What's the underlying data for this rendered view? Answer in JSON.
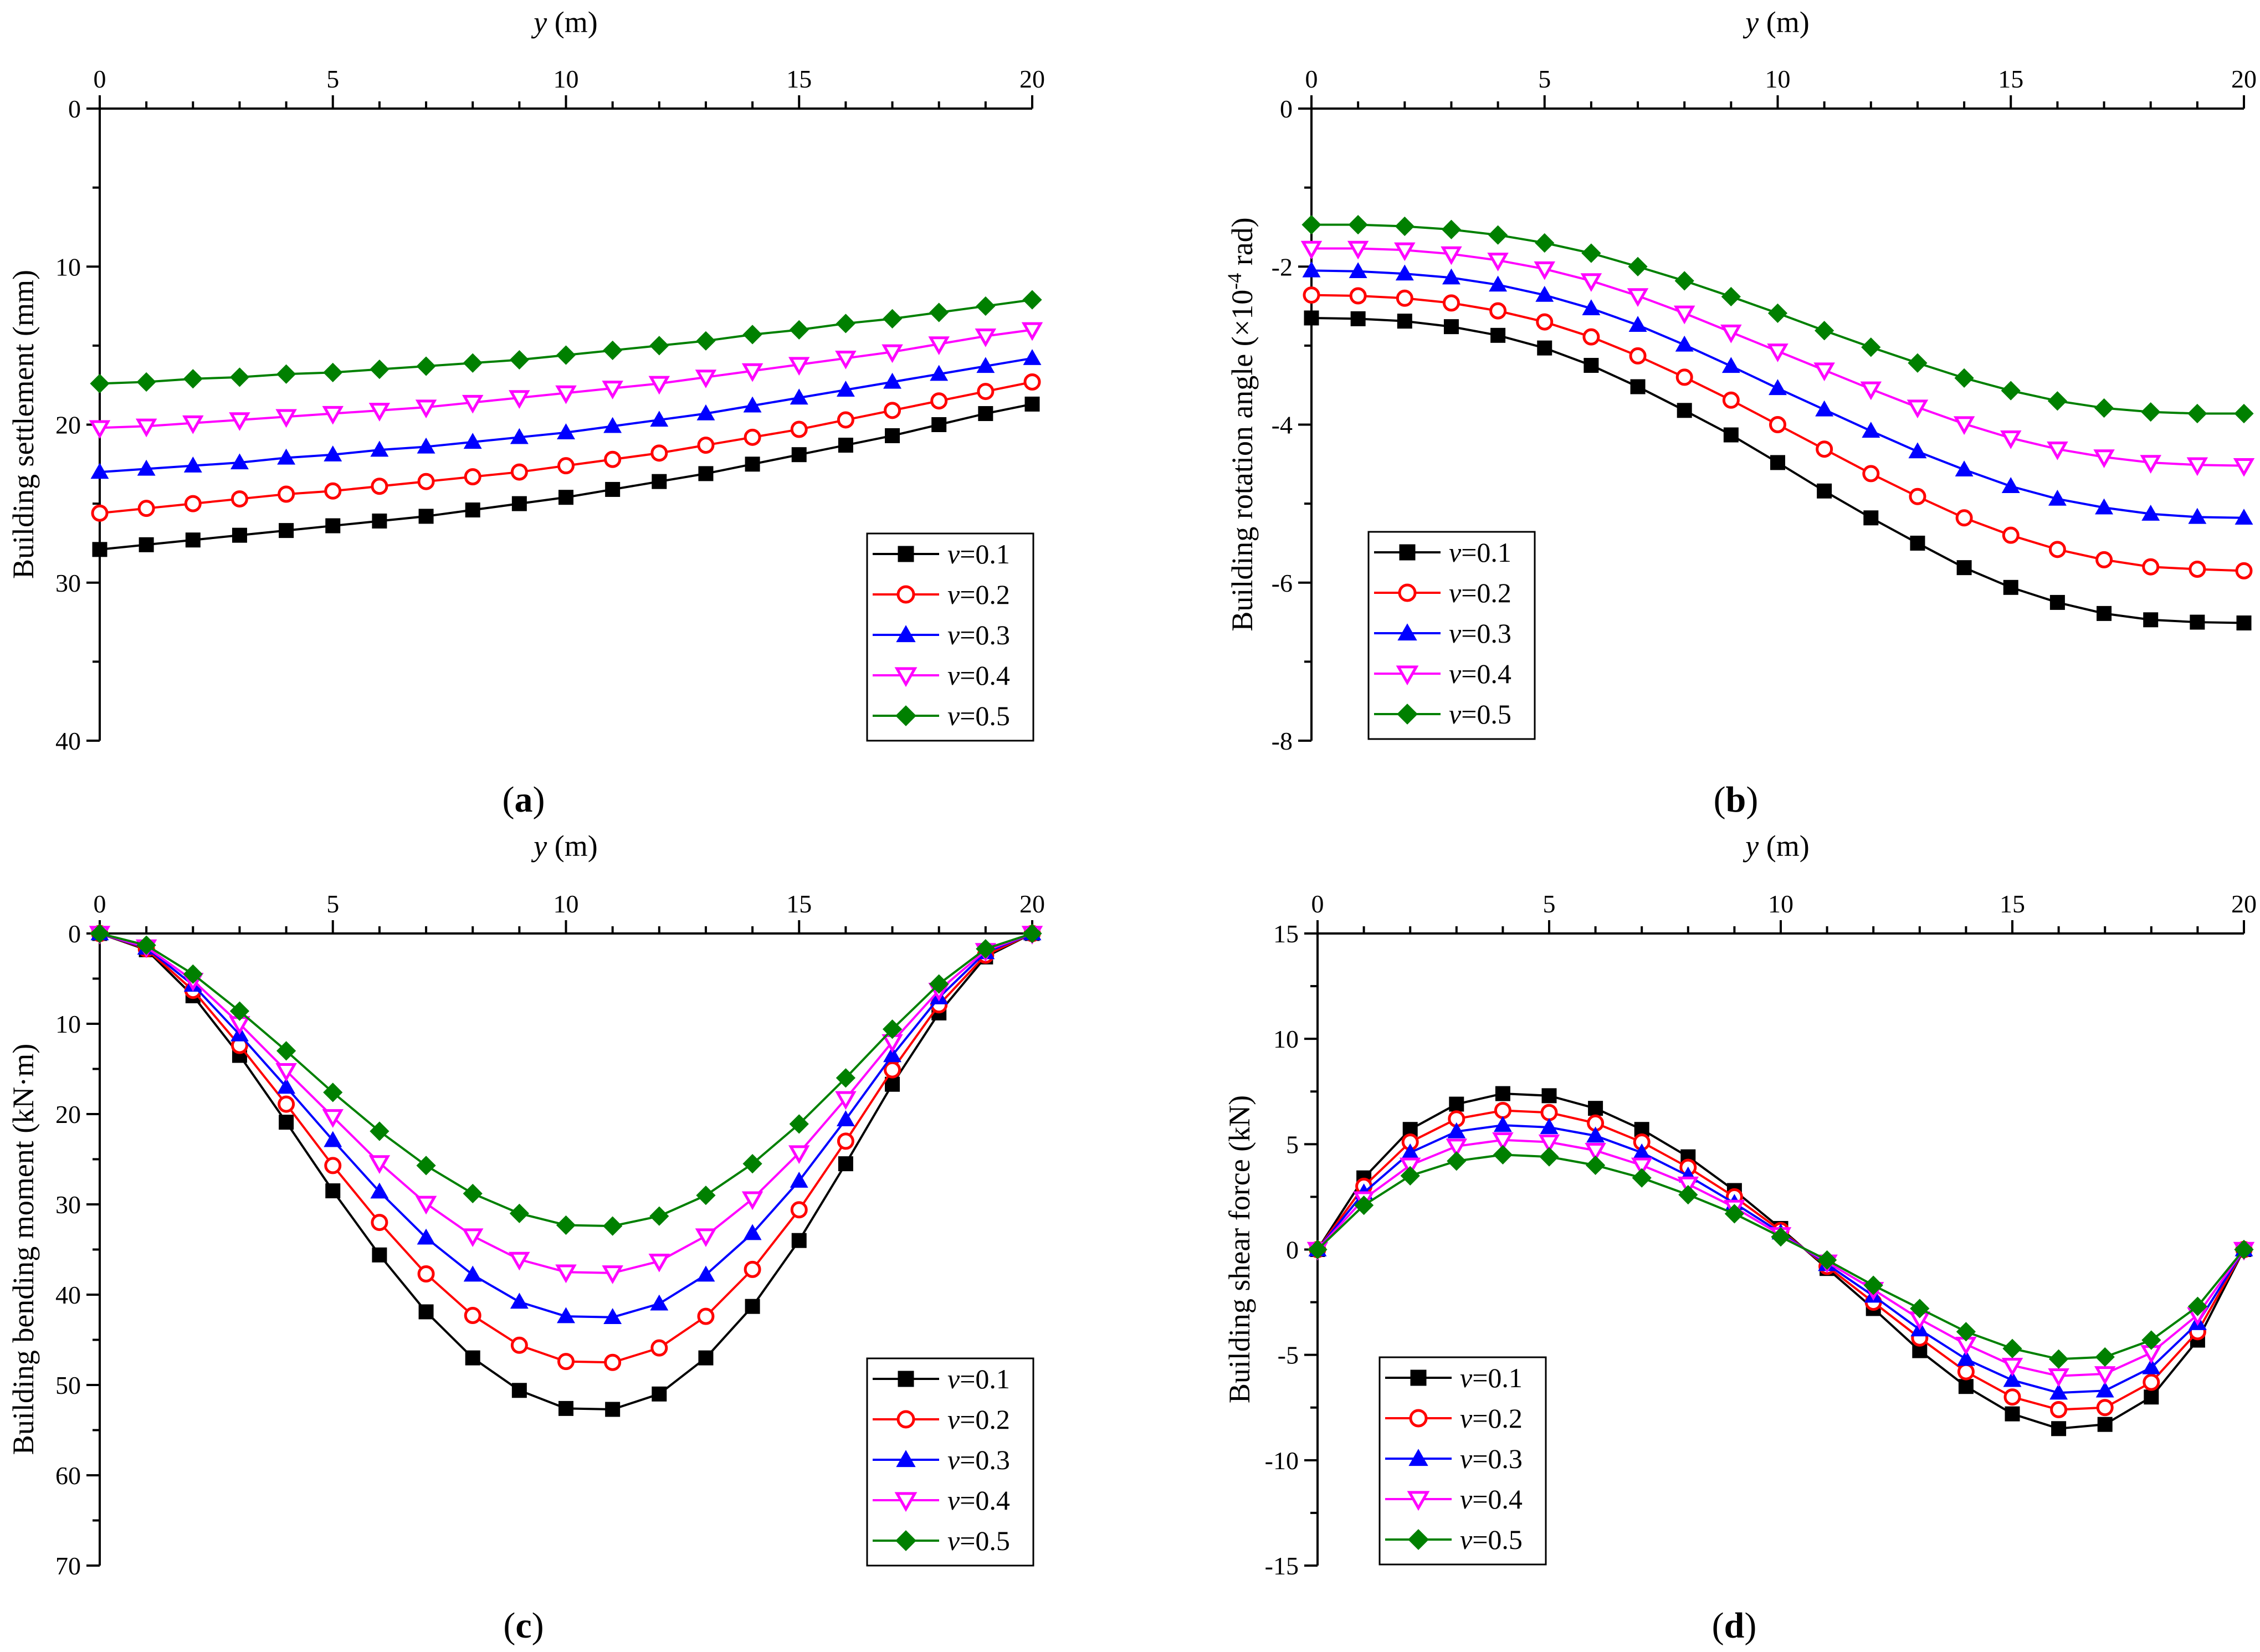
{
  "figure": {
    "legend_series_symbol": "v",
    "x_axis_symbol": "y",
    "x_axis_unit": " (m)"
  },
  "chart_data": [
    {
      "type": "line",
      "panel": "(a)",
      "panel_letter": "a",
      "xlabel": "y (m)",
      "ylabel": "Building settlement (mm)",
      "xlim": [
        0,
        20
      ],
      "ylim": [
        0,
        40
      ],
      "y_inverted": true,
      "x_ticks": [
        0,
        5,
        10,
        15,
        20
      ],
      "x_tick_labels": [
        "0",
        "5",
        "10",
        "15",
        "20"
      ],
      "y_ticks": [
        0,
        10,
        20,
        30,
        40
      ],
      "y_tick_labels": [
        "0",
        "10",
        "20",
        "30",
        "40"
      ],
      "legend_position": "bottom-right",
      "x": [
        0,
        1,
        2,
        3,
        4,
        5,
        6,
        7,
        8,
        9,
        10,
        11,
        12,
        13,
        14,
        15,
        16,
        17,
        18,
        19,
        20
      ],
      "series": [
        {
          "name": "v=0.1",
          "label_value": "=0.1",
          "color": "#000000",
          "marker": "square",
          "values": [
            27.9,
            27.6,
            27.3,
            27.0,
            26.7,
            26.4,
            26.1,
            25.8,
            25.4,
            25.0,
            24.6,
            24.1,
            23.6,
            23.1,
            22.5,
            21.9,
            21.3,
            20.7,
            20.0,
            19.3,
            18.7
          ]
        },
        {
          "name": "v=0.2",
          "label_value": "=0.2",
          "color": "#ff0000",
          "marker": "circle-open",
          "values": [
            25.6,
            25.3,
            25.0,
            24.7,
            24.4,
            24.2,
            23.9,
            23.6,
            23.3,
            23.0,
            22.6,
            22.2,
            21.8,
            21.3,
            20.8,
            20.3,
            19.7,
            19.1,
            18.5,
            17.9,
            17.3
          ]
        },
        {
          "name": "v=0.3",
          "label_value": "=0.3",
          "color": "#0000ff",
          "marker": "triangle-up",
          "values": [
            23.0,
            22.8,
            22.6,
            22.4,
            22.1,
            21.9,
            21.6,
            21.4,
            21.1,
            20.8,
            20.5,
            20.1,
            19.7,
            19.3,
            18.8,
            18.3,
            17.8,
            17.3,
            16.8,
            16.3,
            15.8
          ]
        },
        {
          "name": "v=0.4",
          "label_value": "=0.4",
          "color": "#ff00ff",
          "marker": "triangle-down-open",
          "values": [
            20.2,
            20.1,
            19.9,
            19.7,
            19.5,
            19.3,
            19.1,
            18.9,
            18.6,
            18.3,
            18.0,
            17.7,
            17.4,
            17.0,
            16.6,
            16.2,
            15.8,
            15.4,
            14.9,
            14.4,
            14.0
          ]
        },
        {
          "name": "v=0.5",
          "label_value": "=0.5",
          "color": "#008000",
          "marker": "diamond",
          "values": [
            17.4,
            17.3,
            17.1,
            17.0,
            16.8,
            16.7,
            16.5,
            16.3,
            16.1,
            15.9,
            15.6,
            15.3,
            15.0,
            14.7,
            14.3,
            14.0,
            13.6,
            13.3,
            12.9,
            12.5,
            12.1
          ]
        }
      ]
    },
    {
      "type": "line",
      "panel": "(b)",
      "panel_letter": "b",
      "xlabel": "y (m)",
      "ylabel": "Building rotation angle (×10⁻⁴ rad)",
      "ylabel_main": "Building rotation angle (×10",
      "ylabel_exp": "-4",
      "ylabel_tail": " rad)",
      "xlim": [
        0,
        20
      ],
      "ylim": [
        -8,
        0
      ],
      "y_inverted": false,
      "x_ticks": [
        0,
        5,
        10,
        15,
        20
      ],
      "x_tick_labels": [
        "0",
        "5",
        "10",
        "15",
        "20"
      ],
      "y_ticks": [
        0,
        -2,
        -4,
        -6,
        -8
      ],
      "y_tick_labels": [
        "0",
        "-2",
        "-4",
        "-6",
        "-8"
      ],
      "legend_position": "bottom-left",
      "x": [
        0,
        1,
        2,
        3,
        4,
        5,
        6,
        7,
        8,
        9,
        10,
        11,
        12,
        13,
        14,
        15,
        16,
        17,
        18,
        19,
        20
      ],
      "series": [
        {
          "name": "v=0.1",
          "label_value": "=0.1",
          "color": "#000000",
          "marker": "square",
          "values": [
            -2.65,
            -2.66,
            -2.69,
            -2.76,
            -2.87,
            -3.03,
            -3.25,
            -3.52,
            -3.82,
            -4.13,
            -4.48,
            -4.84,
            -5.18,
            -5.5,
            -5.81,
            -6.06,
            -6.25,
            -6.39,
            -6.47,
            -6.5,
            -6.51
          ]
        },
        {
          "name": "v=0.2",
          "label_value": "=0.2",
          "color": "#ff0000",
          "marker": "circle-open",
          "values": [
            -2.36,
            -2.37,
            -2.4,
            -2.46,
            -2.56,
            -2.7,
            -2.89,
            -3.13,
            -3.4,
            -3.69,
            -4.0,
            -4.31,
            -4.62,
            -4.91,
            -5.18,
            -5.4,
            -5.58,
            -5.71,
            -5.8,
            -5.83,
            -5.85
          ]
        },
        {
          "name": "v=0.3",
          "label_value": "=0.3",
          "color": "#0000ff",
          "marker": "triangle-up",
          "values": [
            -2.05,
            -2.06,
            -2.09,
            -2.14,
            -2.23,
            -2.36,
            -2.53,
            -2.74,
            -2.99,
            -3.26,
            -3.54,
            -3.81,
            -4.08,
            -4.34,
            -4.57,
            -4.78,
            -4.94,
            -5.05,
            -5.13,
            -5.17,
            -5.18
          ]
        },
        {
          "name": "v=0.4",
          "label_value": "=0.4",
          "color": "#ff00ff",
          "marker": "triangle-down-open",
          "values": [
            -1.77,
            -1.77,
            -1.79,
            -1.84,
            -1.92,
            -2.03,
            -2.18,
            -2.37,
            -2.59,
            -2.83,
            -3.07,
            -3.31,
            -3.55,
            -3.78,
            -3.99,
            -4.17,
            -4.31,
            -4.41,
            -4.48,
            -4.51,
            -4.52
          ]
        },
        {
          "name": "v=0.5",
          "label_value": "=0.5",
          "color": "#008000",
          "marker": "diamond",
          "values": [
            -1.47,
            -1.47,
            -1.49,
            -1.53,
            -1.6,
            -1.7,
            -1.83,
            -2.0,
            -2.18,
            -2.38,
            -2.59,
            -2.81,
            -3.02,
            -3.22,
            -3.41,
            -3.57,
            -3.7,
            -3.79,
            -3.84,
            -3.86,
            -3.86
          ]
        }
      ]
    },
    {
      "type": "line",
      "panel": "(c)",
      "panel_letter": "c",
      "xlabel": "y (m)",
      "ylabel": "Building bending moment (kN·m)",
      "xlim": [
        0,
        20
      ],
      "ylim": [
        0,
        70
      ],
      "y_inverted": true,
      "x_ticks": [
        0,
        5,
        10,
        15,
        20
      ],
      "x_tick_labels": [
        "0",
        "5",
        "10",
        "15",
        "20"
      ],
      "y_ticks": [
        0,
        10,
        20,
        30,
        40,
        50,
        60,
        70
      ],
      "y_tick_labels": [
        "0",
        "10",
        "20",
        "30",
        "40",
        "50",
        "60",
        "70"
      ],
      "legend_position": "bottom-right",
      "x": [
        0,
        1,
        2,
        3,
        4,
        5,
        6,
        7,
        8,
        9,
        10,
        11,
        12,
        13,
        14,
        15,
        16,
        17,
        18,
        19,
        20
      ],
      "series": [
        {
          "name": "v=0.1",
          "label_value": "=0.1",
          "color": "#000000",
          "marker": "square",
          "values": [
            0,
            1.8,
            6.9,
            13.5,
            20.9,
            28.5,
            35.6,
            41.9,
            47.0,
            50.6,
            52.6,
            52.7,
            51.0,
            47.0,
            41.3,
            34.0,
            25.5,
            16.7,
            8.8,
            2.6,
            0
          ]
        },
        {
          "name": "v=0.2",
          "label_value": "=0.2",
          "color": "#ff0000",
          "marker": "circle-open",
          "values": [
            0,
            1.7,
            6.3,
            12.4,
            18.9,
            25.7,
            32.0,
            37.7,
            42.3,
            45.6,
            47.4,
            47.5,
            45.9,
            42.4,
            37.2,
            30.6,
            23.0,
            15.1,
            7.9,
            2.4,
            0
          ]
        },
        {
          "name": "v=0.3",
          "label_value": "=0.3",
          "color": "#0000ff",
          "marker": "triangle-up",
          "values": [
            0,
            1.6,
            5.7,
            11.2,
            17.0,
            22.9,
            28.6,
            33.7,
            37.8,
            40.8,
            42.4,
            42.5,
            41.0,
            37.8,
            33.2,
            27.4,
            20.6,
            13.5,
            7.1,
            2.1,
            0
          ]
        },
        {
          "name": "v=0.4",
          "label_value": "=0.4",
          "color": "#ff00ff",
          "marker": "triangle-down-open",
          "values": [
            0,
            1.5,
            5.2,
            10.0,
            15.2,
            20.3,
            25.4,
            29.9,
            33.5,
            36.1,
            37.5,
            37.6,
            36.3,
            33.5,
            29.4,
            24.3,
            18.3,
            12.0,
            6.3,
            1.9,
            0
          ]
        },
        {
          "name": "v=0.5",
          "label_value": "=0.5",
          "color": "#008000",
          "marker": "diamond",
          "values": [
            0,
            1.3,
            4.5,
            8.6,
            13.0,
            17.6,
            21.9,
            25.7,
            28.8,
            31.0,
            32.3,
            32.4,
            31.3,
            29.0,
            25.5,
            21.1,
            16.0,
            10.6,
            5.6,
            1.7,
            0
          ]
        }
      ]
    },
    {
      "type": "line",
      "panel": "(d)",
      "panel_letter": "d",
      "xlabel": "y (m)",
      "ylabel": "Building shear force (kN)",
      "xlim": [
        0,
        20
      ],
      "ylim": [
        -15,
        15
      ],
      "y_inverted": false,
      "x_ticks": [
        0,
        5,
        10,
        15,
        20
      ],
      "x_tick_labels": [
        "0",
        "5",
        "10",
        "15",
        "20"
      ],
      "y_ticks": [
        15,
        10,
        5,
        0,
        -5,
        -10,
        -15
      ],
      "y_tick_labels": [
        "15",
        "10",
        "5",
        "0",
        "-5",
        "-10",
        "-15"
      ],
      "legend_position": "bottom-left",
      "x": [
        0,
        1,
        2,
        3,
        4,
        5,
        6,
        7,
        8,
        9,
        10,
        11,
        12,
        13,
        14,
        15,
        16,
        17,
        18,
        19,
        20
      ],
      "series": [
        {
          "name": "v=0.1",
          "label_value": "=0.1",
          "color": "#000000",
          "marker": "square",
          "values": [
            0,
            3.4,
            5.7,
            6.9,
            7.4,
            7.3,
            6.7,
            5.7,
            4.4,
            2.8,
            1.0,
            -0.9,
            -2.8,
            -4.8,
            -6.5,
            -7.8,
            -8.5,
            -8.3,
            -7.0,
            -4.3,
            0
          ]
        },
        {
          "name": "v=0.2",
          "label_value": "=0.2",
          "color": "#ff0000",
          "marker": "circle-open",
          "values": [
            0,
            3.0,
            5.1,
            6.2,
            6.6,
            6.5,
            6.0,
            5.1,
            3.9,
            2.5,
            0.9,
            -0.8,
            -2.5,
            -4.2,
            -5.8,
            -7.0,
            -7.6,
            -7.5,
            -6.3,
            -3.9,
            0
          ]
        },
        {
          "name": "v=0.3",
          "label_value": "=0.3",
          "color": "#0000ff",
          "marker": "triangle-up",
          "values": [
            0,
            2.7,
            4.6,
            5.6,
            5.9,
            5.8,
            5.4,
            4.6,
            3.5,
            2.2,
            0.8,
            -0.7,
            -2.2,
            -3.8,
            -5.2,
            -6.2,
            -6.8,
            -6.7,
            -5.6,
            -3.5,
            0
          ]
        },
        {
          "name": "v=0.4",
          "label_value": "=0.4",
          "color": "#ff00ff",
          "marker": "triangle-down-open",
          "values": [
            0,
            2.4,
            4.0,
            4.9,
            5.2,
            5.1,
            4.7,
            4.0,
            3.1,
            2.0,
            0.7,
            -0.6,
            -1.9,
            -3.3,
            -4.5,
            -5.5,
            -6.0,
            -5.9,
            -4.9,
            -3.1,
            0
          ]
        },
        {
          "name": "v=0.5",
          "label_value": "=0.5",
          "color": "#008000",
          "marker": "diamond",
          "values": [
            0,
            2.1,
            3.5,
            4.2,
            4.5,
            4.4,
            4.0,
            3.4,
            2.6,
            1.7,
            0.6,
            -0.5,
            -1.7,
            -2.8,
            -3.9,
            -4.7,
            -5.2,
            -5.1,
            -4.3,
            -2.7,
            0
          ]
        }
      ]
    }
  ]
}
